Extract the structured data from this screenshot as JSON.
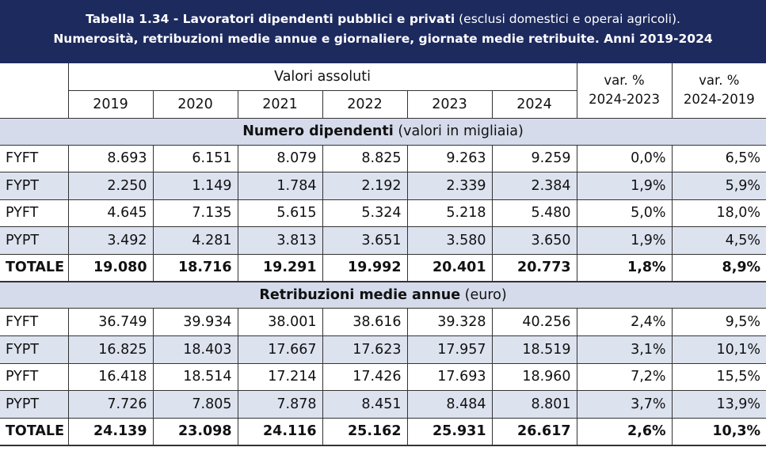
{
  "title": {
    "line1_bold": "Tabella 1.34 - Lavoratori dipendenti pubblici e privati",
    "line1_light": "(esclusi domestici e operai agricoli).",
    "line2": "Numerosità, retribuzioni medie annue e giornaliere, giornate medie retribuite. Anni 2019-2024"
  },
  "header": {
    "group_label": "Valori assoluti",
    "years": [
      "2019",
      "2020",
      "2021",
      "2022",
      "2023",
      "2024"
    ],
    "var1_line1": "var. %",
    "var1_line2": "2024-2023",
    "var2_line1": "var. %",
    "var2_line2": "2024-2019"
  },
  "sections": [
    {
      "title_bold": "Numero dipendenti",
      "title_light": "(valori in migliaia)",
      "rows": [
        {
          "label": "FYFT",
          "values": [
            "8.693",
            "6.151",
            "8.079",
            "8.825",
            "9.263",
            "9.259",
            "0,0%",
            "6,5%"
          ]
        },
        {
          "label": "FYPT",
          "values": [
            "2.250",
            "1.149",
            "1.784",
            "2.192",
            "2.339",
            "2.384",
            "1,9%",
            "5,9%"
          ]
        },
        {
          "label": "PYFT",
          "values": [
            "4.645",
            "7.135",
            "5.615",
            "5.324",
            "5.218",
            "5.480",
            "5,0%",
            "18,0%"
          ]
        },
        {
          "label": "PYPT",
          "values": [
            "3.492",
            "4.281",
            "3.813",
            "3.651",
            "3.580",
            "3.650",
            "1,9%",
            "4,5%"
          ]
        },
        {
          "label": "TOTALE",
          "values": [
            "19.080",
            "18.716",
            "19.291",
            "19.992",
            "20.401",
            "20.773",
            "1,8%",
            "8,9%"
          ]
        }
      ]
    },
    {
      "title_bold": "Retribuzioni medie annue",
      "title_light": "(euro)",
      "rows": [
        {
          "label": "FYFT",
          "values": [
            "36.749",
            "39.934",
            "38.001",
            "38.616",
            "39.328",
            "40.256",
            "2,4%",
            "9,5%"
          ]
        },
        {
          "label": "FYPT",
          "values": [
            "16.825",
            "18.403",
            "17.667",
            "17.623",
            "17.957",
            "18.519",
            "3,1%",
            "10,1%"
          ]
        },
        {
          "label": "PYFT",
          "values": [
            "16.418",
            "18.514",
            "17.214",
            "17.426",
            "17.693",
            "18.960",
            "7,2%",
            "15,5%"
          ]
        },
        {
          "label": "PYPT",
          "values": [
            "7.726",
            "7.805",
            "7.878",
            "8.451",
            "8.484",
            "8.801",
            "3,7%",
            "13,9%"
          ]
        },
        {
          "label": "TOTALE",
          "values": [
            "24.139",
            "23.098",
            "24.116",
            "25.162",
            "25.931",
            "26.617",
            "2,6%",
            "10,3%"
          ]
        }
      ]
    }
  ],
  "colors": {
    "title_bg": "#1d2a5e",
    "band_bg": "#d5dbea",
    "alt_row_bg": "#dde2ef"
  }
}
